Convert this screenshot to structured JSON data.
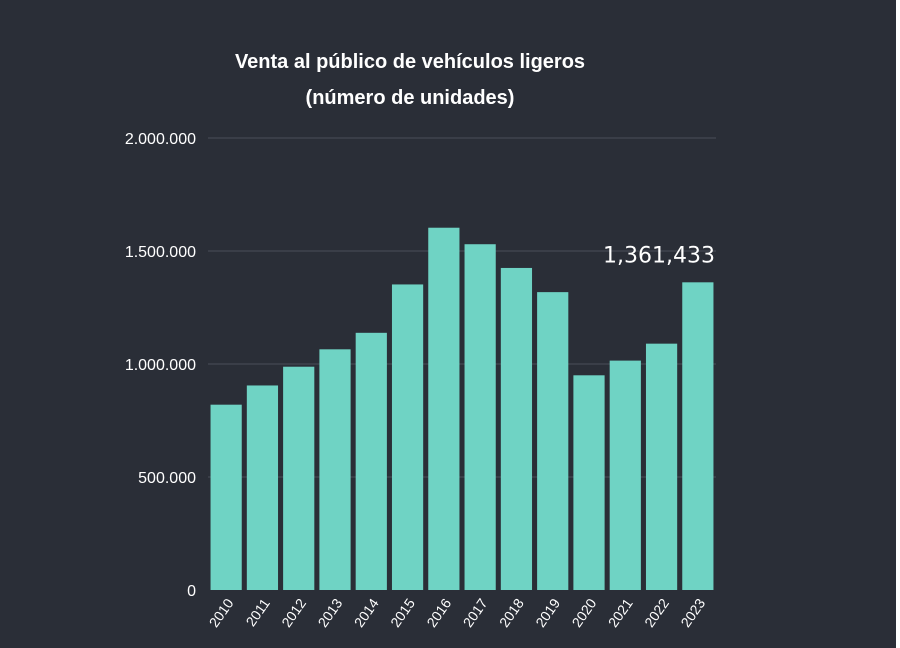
{
  "colors": {
    "background": "#2a2e37",
    "bar": "#6fd3c4",
    "gridline": "#4a4f58",
    "text": "#ffffff"
  },
  "chart_data": {
    "type": "bar",
    "title_line1": "Venta al público de vehículos ligeros",
    "title_line2": "(número de unidades)",
    "categories": [
      "2010",
      "2011",
      "2012",
      "2013",
      "2014",
      "2015",
      "2016",
      "2017",
      "2018",
      "2019",
      "2020",
      "2021",
      "2022",
      "2023"
    ],
    "values": [
      820000,
      905000,
      988000,
      1065000,
      1138000,
      1352000,
      1603000,
      1530000,
      1425000,
      1318000,
      950000,
      1015000,
      1090000,
      1361433
    ],
    "ylim": [
      0,
      2000000
    ],
    "yticks": [
      0,
      500000,
      1000000,
      1500000,
      2000000
    ],
    "ytick_labels": [
      "0",
      "500.000",
      "1.000.000",
      "1.500.000",
      "2.000.000"
    ],
    "grid": true,
    "annotation": {
      "category": "2023",
      "text": "1,361,433"
    }
  }
}
